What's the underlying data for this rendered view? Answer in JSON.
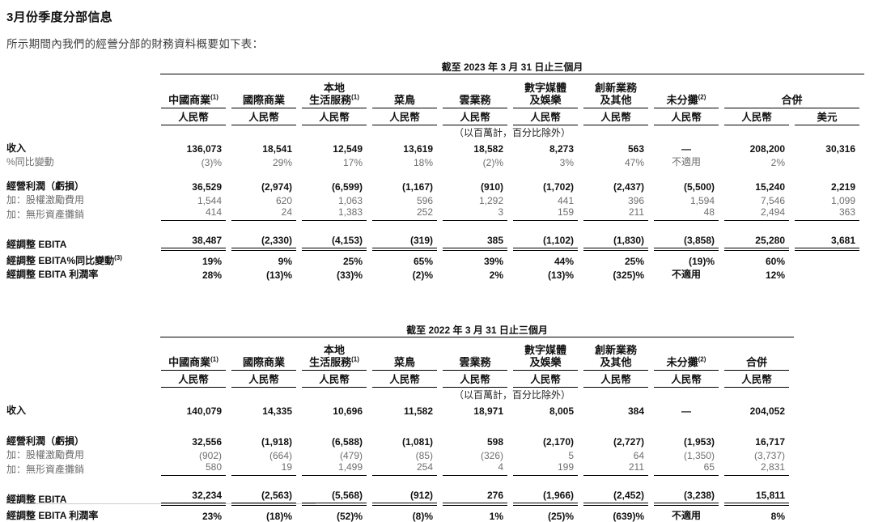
{
  "page": {
    "title": "3月份季度分部信息",
    "subtitle": "所示期間內我們的經營分部的財務資料概要如下表："
  },
  "units_note": "（以百萬計，百分比除外）",
  "not_applicable_label": "不適用",
  "colors": {
    "text": "#1a1a1a",
    "muted_text": "#6e6e6e",
    "rule": "#000000",
    "background": "#ffffff"
  },
  "tables": [
    {
      "id": "2023",
      "period": "截至 2023 年 3 月 31 日止三個月",
      "column_groups": [
        {
          "label": "中國商業",
          "sup": "(1)",
          "currencies": [
            "人民幣"
          ]
        },
        {
          "label": "國際商業",
          "sup": "",
          "currencies": [
            "人民幣"
          ]
        },
        {
          "label": "本地\n生活服務",
          "sup": "(1)",
          "currencies": [
            "人民幣"
          ]
        },
        {
          "label": "菜鳥",
          "sup": "",
          "currencies": [
            "人民幣"
          ]
        },
        {
          "label": "雲業務",
          "sup": "",
          "currencies": [
            "人民幣"
          ]
        },
        {
          "label": "數字媒體\n及娛樂",
          "sup": "",
          "currencies": [
            "人民幣"
          ]
        },
        {
          "label": "創新業務\n及其他",
          "sup": "",
          "currencies": [
            "人民幣"
          ]
        },
        {
          "label": "未分攤",
          "sup": "(2)",
          "currencies": [
            "人民幣"
          ]
        },
        {
          "label": "合併",
          "sup": "",
          "currencies": [
            "人民幣",
            "美元"
          ]
        }
      ],
      "rows": [
        {
          "label": "收入",
          "sup": "",
          "style": "bold",
          "space_before": 0,
          "rule_after": "",
          "values": [
            "136,073",
            "18,541",
            "12,549",
            "13,619",
            "18,582",
            "8,273",
            "563",
            "—",
            "208,200",
            "30,316"
          ]
        },
        {
          "label": "%同比變動",
          "sup": "",
          "style": "muted",
          "space_before": 0,
          "rule_after": "",
          "values": [
            "(3)%",
            "29%",
            "17%",
            "18%",
            "(2)%",
            "3%",
            "47%",
            "不適用",
            "2%",
            ""
          ]
        },
        {
          "label": "經營利潤（虧損）",
          "sup": "",
          "style": "bold",
          "space_before": 13,
          "rule_after": "",
          "values": [
            "36,529",
            "(2,974)",
            "(6,599)",
            "(1,167)",
            "(910)",
            "(1,702)",
            "(2,437)",
            "(5,500)",
            "15,240",
            "2,219"
          ]
        },
        {
          "label": "加：股權激勵費用",
          "sup": "",
          "style": "muted",
          "space_before": 0,
          "rule_after": "",
          "values": [
            "1,544",
            "620",
            "1,063",
            "596",
            "1,292",
            "441",
            "396",
            "1,594",
            "7,546",
            "1,099"
          ]
        },
        {
          "label": "加：無形資產攤銷",
          "sup": "",
          "style": "muted",
          "space_before": 0,
          "rule_after": "single",
          "values": [
            "414",
            "24",
            "1,383",
            "252",
            "3",
            "159",
            "211",
            "48",
            "2,494",
            "363"
          ]
        },
        {
          "label": "經調整 EBITA",
          "sup": "",
          "style": "bold",
          "space_before": 17,
          "rule_after": "double",
          "values": [
            "38,487",
            "(2,330)",
            "(4,153)",
            "(319)",
            "385",
            "(1,102)",
            "(1,830)",
            "(3,858)",
            "25,280",
            "3,681"
          ]
        },
        {
          "label": "經調整 EBITA%同比變動",
          "sup": "(3)",
          "style": "bold",
          "space_before": 3,
          "rule_after": "",
          "values": [
            "19%",
            "9%",
            "25%",
            "65%",
            "39%",
            "44%",
            "25%",
            "(19)%",
            "60%",
            ""
          ]
        },
        {
          "label": "經調整 EBITA 利潤率",
          "sup": "",
          "style": "bold",
          "space_before": 0,
          "rule_after": "",
          "values": [
            "28%",
            "(13)%",
            "(33)%",
            "(2)%",
            "2%",
            "(13)%",
            "(325)%",
            "不適用",
            "12%",
            ""
          ]
        }
      ]
    },
    {
      "id": "2022",
      "period": "截至 2022 年 3 月 31 日止三個月",
      "column_groups": [
        {
          "label": "中國商業",
          "sup": "(1)",
          "currencies": [
            "人民幣"
          ]
        },
        {
          "label": "國際商業",
          "sup": "",
          "currencies": [
            "人民幣"
          ]
        },
        {
          "label": "本地\n生活服務",
          "sup": "(1)",
          "currencies": [
            "人民幣"
          ]
        },
        {
          "label": "菜鳥",
          "sup": "",
          "currencies": [
            "人民幣"
          ]
        },
        {
          "label": "雲業務",
          "sup": "",
          "currencies": [
            "人民幣"
          ]
        },
        {
          "label": "數字媒體\n及娛樂",
          "sup": "",
          "currencies": [
            "人民幣"
          ]
        },
        {
          "label": "創新業務\n及其他",
          "sup": "",
          "currencies": [
            "人民幣"
          ]
        },
        {
          "label": "未分攤",
          "sup": "(2)",
          "currencies": [
            "人民幣"
          ]
        },
        {
          "label": "合併",
          "sup": "",
          "currencies": [
            "人民幣"
          ]
        }
      ],
      "rows": [
        {
          "label": "收入",
          "sup": "",
          "style": "bold",
          "space_before": 0,
          "rule_after": "",
          "values": [
            "140,079",
            "14,335",
            "10,696",
            "11,582",
            "18,971",
            "8,005",
            "384",
            "—",
            "204,052"
          ]
        },
        {
          "label": "經營利潤（虧損）",
          "sup": "",
          "style": "bold",
          "space_before": 21,
          "rule_after": "",
          "values": [
            "32,556",
            "(1,918)",
            "(6,588)",
            "(1,081)",
            "598",
            "(2,170)",
            "(2,727)",
            "(1,953)",
            "16,717"
          ]
        },
        {
          "label": "加：股權激勵費用",
          "sup": "",
          "style": "muted",
          "space_before": 0,
          "rule_after": "",
          "values": [
            "(902)",
            "(664)",
            "(479)",
            "(85)",
            "(326)",
            "5",
            "64",
            "(1,350)",
            "(3,737)"
          ]
        },
        {
          "label": "加：無形資產攤銷",
          "sup": "",
          "style": "muted",
          "space_before": 0,
          "rule_after": "single",
          "values": [
            "580",
            "19",
            "1,499",
            "254",
            "4",
            "199",
            "211",
            "65",
            "2,831"
          ]
        },
        {
          "label": "經調整 EBITA",
          "sup": "",
          "style": "bold",
          "space_before": 17,
          "rule_after": "double",
          "values": [
            "32,234",
            "(2,563)",
            "(5,568)",
            "(912)",
            "276",
            "(1,966)",
            "(2,452)",
            "(3,238)",
            "15,811"
          ]
        },
        {
          "label": "經調整 EBITA 利潤率",
          "sup": "",
          "style": "bold",
          "space_before": 3,
          "rule_after": "",
          "values": [
            "23%",
            "(18)%",
            "(52)%",
            "(8)%",
            "1%",
            "(25)%",
            "(639)%",
            "不適用",
            "8%"
          ]
        }
      ]
    }
  ],
  "layout_note_values_centered": [
    "—",
    "不適用"
  ]
}
